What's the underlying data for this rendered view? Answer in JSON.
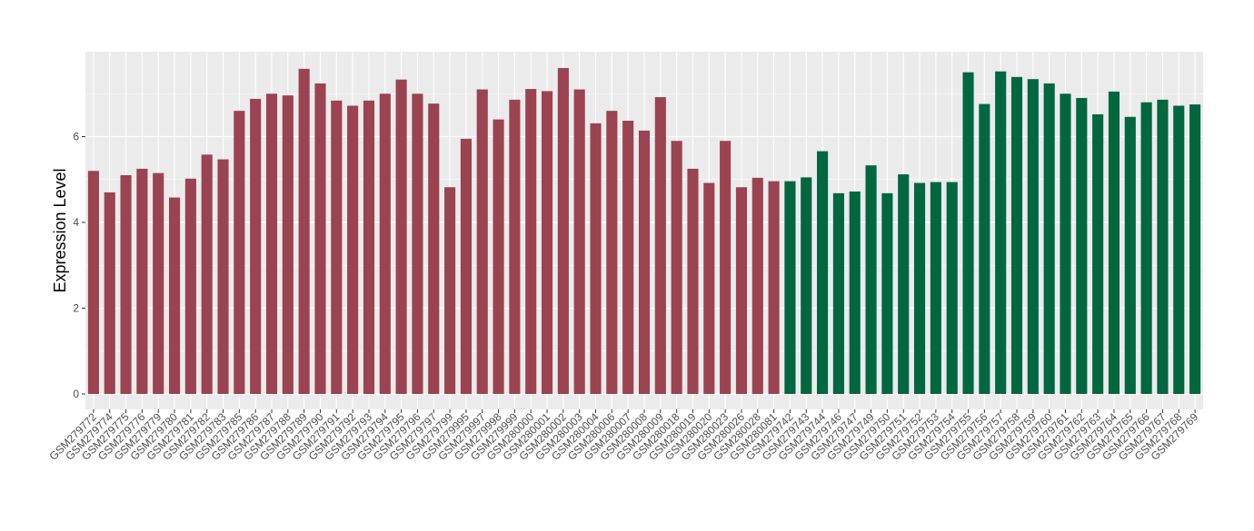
{
  "chart_data": {
    "type": "bar",
    "title": "",
    "xlabel": "",
    "ylabel": "Expression Level",
    "ylim": [
      0,
      7.9
    ],
    "yticks": [
      0,
      2,
      4,
      6
    ],
    "grid": true,
    "colors": {
      "group1": "#9b4350",
      "group2": "#00673f",
      "panel": "#ebebeb",
      "gridline": "#ffffff"
    },
    "categories": [
      "GSM279772",
      "GSM279774",
      "GSM279775",
      "GSM279776",
      "GSM279779",
      "GSM279780",
      "GSM279781",
      "GSM279782",
      "GSM279783",
      "GSM279785",
      "GSM279786",
      "GSM279787",
      "GSM279788",
      "GSM279789",
      "GSM279790",
      "GSM279791",
      "GSM279792",
      "GSM279793",
      "GSM279794",
      "GSM279795",
      "GSM279796",
      "GSM279797",
      "GSM279799",
      "GSM279995",
      "GSM279997",
      "GSM279998",
      "GSM279999",
      "GSM280000",
      "GSM280001",
      "GSM280002",
      "GSM280003",
      "GSM280004",
      "GSM280006",
      "GSM280007",
      "GSM280008",
      "GSM280009",
      "GSM280018",
      "GSM280019",
      "GSM280020",
      "GSM280023",
      "GSM280026",
      "GSM280028",
      "GSM280081",
      "GSM279742",
      "GSM279743",
      "GSM279744",
      "GSM279746",
      "GSM279747",
      "GSM279749",
      "GSM279750",
      "GSM279751",
      "GSM279752",
      "GSM279753",
      "GSM279754",
      "GSM279755",
      "GSM279756",
      "GSM279757",
      "GSM279758",
      "GSM279759",
      "GSM279760",
      "GSM279761",
      "GSM279762",
      "GSM279763",
      "GSM279764",
      "GSM279765",
      "GSM279766",
      "GSM279767",
      "GSM279768",
      "GSM279769"
    ],
    "values": [
      5.2,
      4.7,
      5.1,
      5.25,
      5.15,
      4.58,
      5.02,
      5.58,
      5.47,
      6.6,
      6.88,
      7.0,
      6.96,
      7.58,
      7.24,
      6.84,
      6.72,
      6.84,
      7.0,
      7.33,
      7.0,
      6.77,
      4.82,
      5.95,
      7.1,
      6.4,
      6.86,
      7.11,
      7.06,
      7.6,
      7.1,
      6.31,
      6.6,
      6.37,
      6.14,
      6.92,
      5.9,
      5.25,
      4.92,
      5.9,
      4.82,
      5.04,
      4.96,
      4.96,
      5.05,
      5.66,
      4.68,
      4.72,
      5.33,
      4.68,
      5.12,
      4.92,
      4.94,
      4.94,
      7.5,
      6.76,
      7.52,
      7.39,
      7.34,
      7.24,
      7.0,
      6.9,
      6.52,
      7.05,
      6.46,
      6.8,
      6.86,
      6.72,
      6.75
    ],
    "groups": [
      1,
      1,
      1,
      1,
      1,
      1,
      1,
      1,
      1,
      1,
      1,
      1,
      1,
      1,
      1,
      1,
      1,
      1,
      1,
      1,
      1,
      1,
      1,
      1,
      1,
      1,
      1,
      1,
      1,
      1,
      1,
      1,
      1,
      1,
      1,
      1,
      1,
      1,
      1,
      1,
      1,
      1,
      1,
      2,
      2,
      2,
      2,
      2,
      2,
      2,
      2,
      2,
      2,
      2,
      2,
      2,
      2,
      2,
      2,
      2,
      2,
      2,
      2,
      2,
      2,
      2,
      2,
      2,
      2
    ]
  }
}
